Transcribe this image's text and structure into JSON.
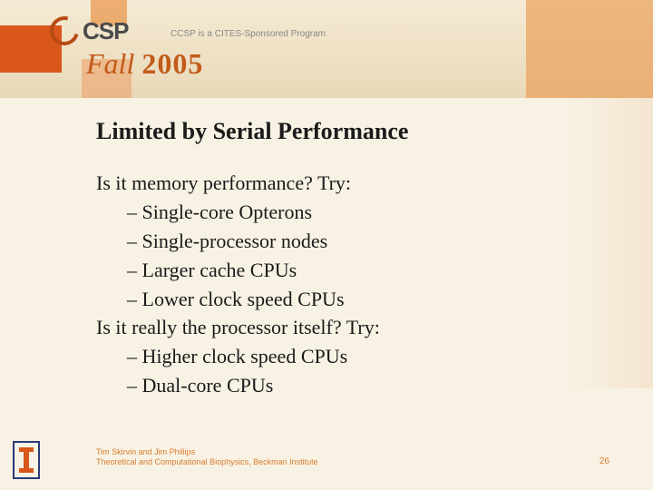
{
  "header": {
    "logo_text": "CSP",
    "tagline": "CCSP is a CITES-Sponsored Program",
    "fall": "Fall",
    "year": "2005"
  },
  "slide": {
    "title": "Limited by Serial Performance",
    "question1": "Is it memory performance?  Try:",
    "q1_items": [
      "– Single-core Opterons",
      "– Single-processor nodes",
      "– Larger cache CPUs",
      "– Lower clock speed CPUs"
    ],
    "question2": "Is it really the processor itself?  Try:",
    "q2_items": [
      "– Higher clock speed CPUs",
      "– Dual-core CPUs"
    ]
  },
  "footer": {
    "line1": "Tim Skirvin and Jim Phillips",
    "line2": "Theoretical and Computational Biophysics, Beckman Institute",
    "page": "26"
  },
  "colors": {
    "bg": "#f8f2e4",
    "orange_dark": "#d9571b",
    "orange_mid": "#e8852f",
    "orange_light": "#e9a05a",
    "footer_text": "#d97b2f",
    "title_text": "#1a1a1a"
  }
}
